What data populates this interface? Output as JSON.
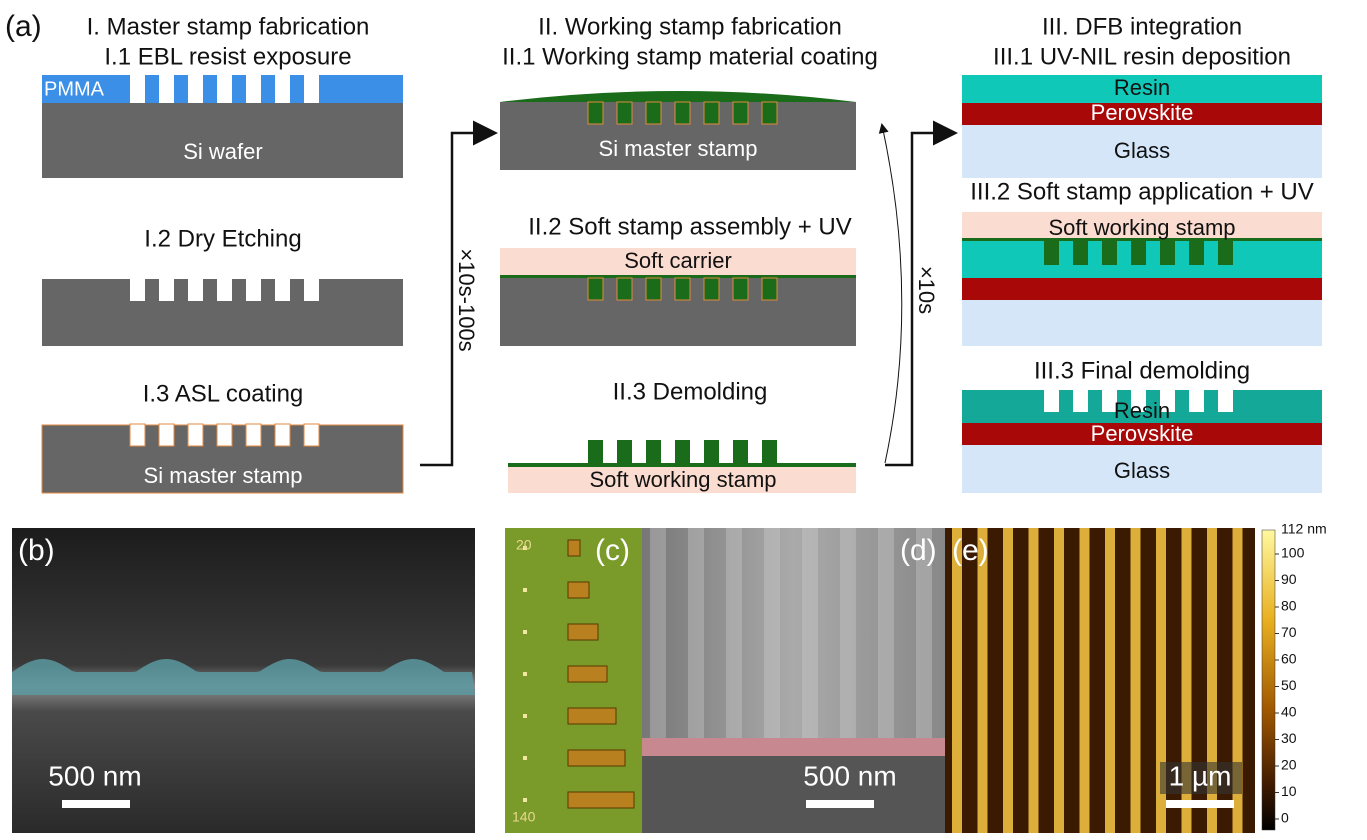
{
  "panel_labels": [
    "(a)",
    "(b)",
    "(c)",
    "(d)",
    "(e)"
  ],
  "column1": {
    "title": "I. Master stamp fabrication",
    "steps": [
      "I.1 EBL resist exposure",
      "I.2 Dry Etching",
      "I.3 ASL coating"
    ],
    "labels": [
      "PMMA",
      "Si wafer",
      "Si master stamp"
    ]
  },
  "column2": {
    "title": "II. Working stamp fabrication",
    "steps": [
      "II.1 Working stamp material coating",
      "II.2 Soft stamp assembly + UV",
      "II.3 Demolding"
    ],
    "labels": [
      "Si master stamp",
      "Soft carrier",
      "Soft working stamp"
    ]
  },
  "column3": {
    "title": "III. DFB integration",
    "steps": [
      "III.1 UV-NIL resin deposition",
      "III.2 Soft stamp application + UV",
      "III.3 Final demolding"
    ],
    "labels": [
      "Resin",
      "Perovskite",
      "Glass",
      "Soft working stamp",
      "Resin",
      "Perovskite",
      "Glass"
    ]
  },
  "arrows": [
    "×10s-100s",
    "×10s"
  ],
  "scale_bars": [
    "500 nm",
    "500 nm",
    "1 µm"
  ],
  "sem_labels": [
    "20",
    "140"
  ],
  "colorbar": {
    "max": "112 nm",
    "ticks": [
      100,
      90,
      80,
      70,
      60,
      50,
      40,
      30,
      20,
      10,
      0
    ]
  }
}
